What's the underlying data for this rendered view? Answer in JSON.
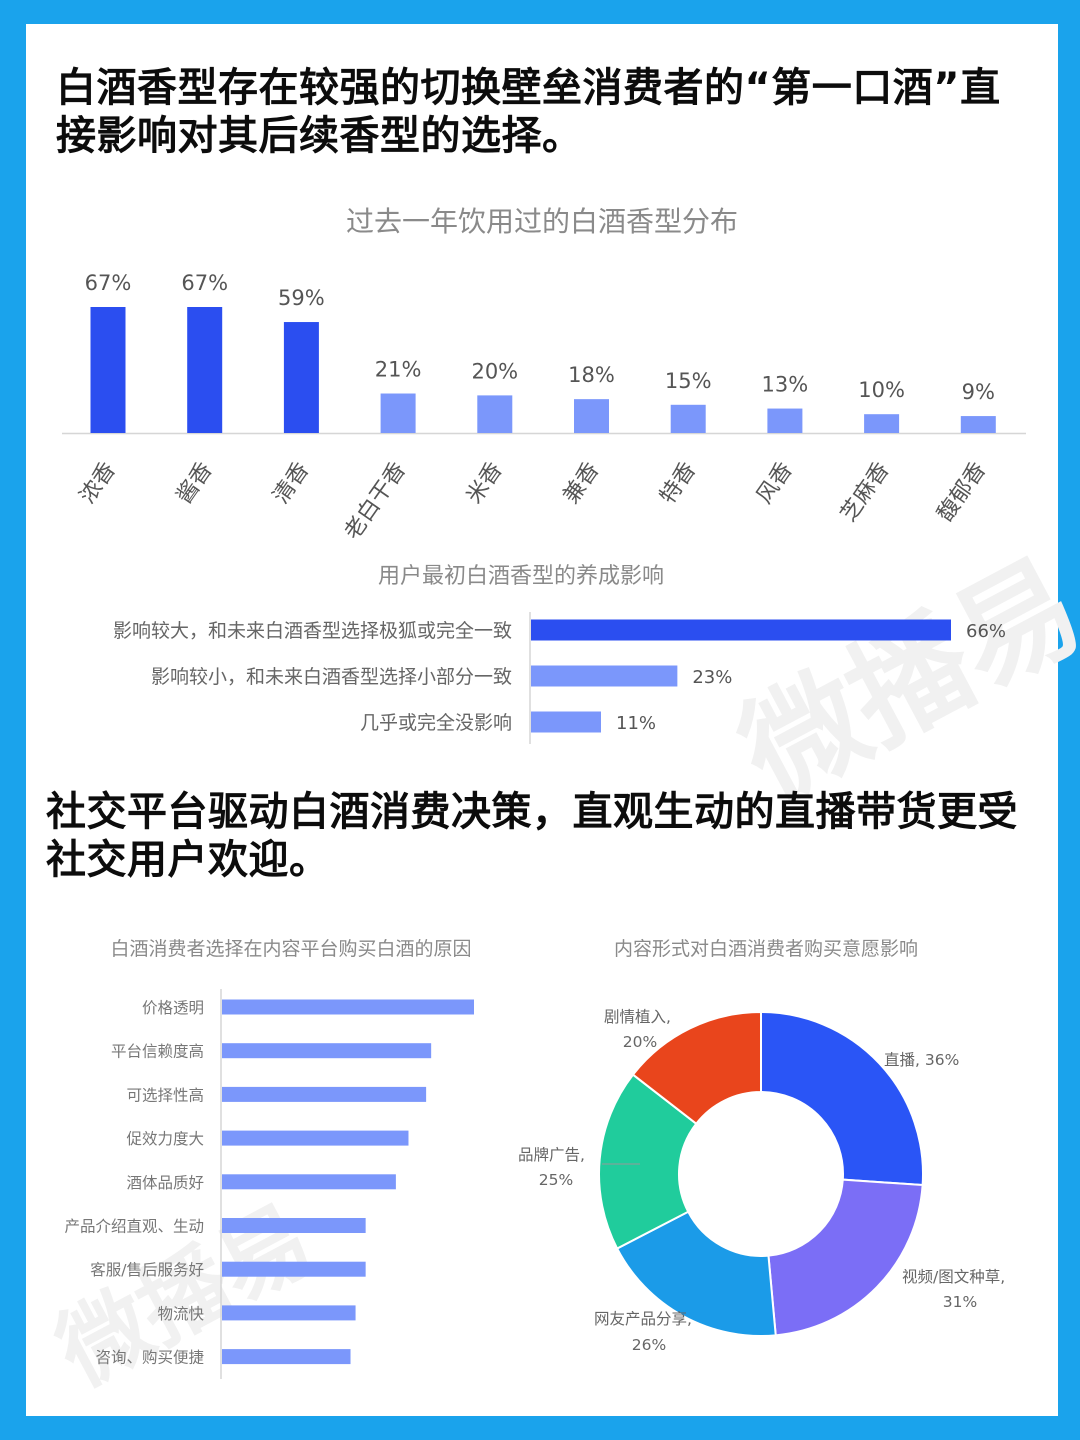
{
  "headline_1": "白酒香型存在较强的切换壁垒消费者的“第一口酒”直接影响对其后续香型的选择。",
  "headline_2": "社交平台驱动白酒消费决策，直观生动的直播带货更受社交用户欢迎。",
  "watermark_text": "微播易",
  "colors": {
    "frame": "#1aa3ec",
    "strong": "#2b4ef0",
    "light": "#7b97fb"
  },
  "chart_data": [
    {
      "type": "bar",
      "title": "过去一年饮用过的白酒香型分布",
      "categories": [
        "浓香",
        "酱香",
        "清香",
        "老白干香",
        "米香",
        "兼香",
        "特香",
        "风香",
        "芝麻香",
        "馥郁香"
      ],
      "values": [
        67,
        67,
        59,
        21,
        20,
        18,
        15,
        13,
        10,
        9
      ],
      "data_labels": [
        "67%",
        "67%",
        "59%",
        "21%",
        "20%",
        "18%",
        "15%",
        "13%",
        "10%",
        "9%"
      ],
      "unit": "%",
      "ylim": [
        0,
        70
      ]
    },
    {
      "type": "bar",
      "orientation": "horizontal",
      "title": "用户最初白酒香型的养成影响",
      "categories": [
        "影响较大，和未来白酒香型选择极狐或完全一致",
        "影响较小，和未来白酒香型选择小部分一致",
        "几乎或完全没影响"
      ],
      "values": [
        66,
        23,
        11
      ],
      "data_labels": [
        "66%",
        "23%",
        "11%"
      ],
      "unit": "%",
      "xlim": [
        0,
        70
      ]
    },
    {
      "type": "bar",
      "orientation": "horizontal",
      "title": "白酒消费者选择在内容平台购买白酒的原因",
      "categories": [
        "价格透明",
        "平台信赖度高",
        "可选择性高",
        "促效力度大",
        "酒体品质好",
        "产品介绍直观、生动",
        "客服/售后服务好",
        "物流快",
        "咨询、购买便捷"
      ],
      "values": [
        100,
        83,
        81,
        74,
        69,
        57,
        57,
        53,
        51
      ],
      "grid": false
    },
    {
      "type": "pie",
      "donut": true,
      "title": "内容形式对白酒消费者购买意愿影响",
      "slices": [
        {
          "label": "直播, 36%",
          "value": 36,
          "color": "#2a55f6"
        },
        {
          "label": "视频/图文种草,",
          "pct": "31%",
          "value": 31,
          "color": "#7b6ef6"
        },
        {
          "label": "网友产品分享,",
          "pct": "26%",
          "value": 26,
          "color": "#1b9be8"
        },
        {
          "label": "品牌广告,",
          "pct": "25%",
          "value": 25,
          "color": "#20cc9c"
        },
        {
          "label": "剧情植入,",
          "pct": "20%",
          "value": 20,
          "color": "#e9451c"
        }
      ]
    }
  ]
}
